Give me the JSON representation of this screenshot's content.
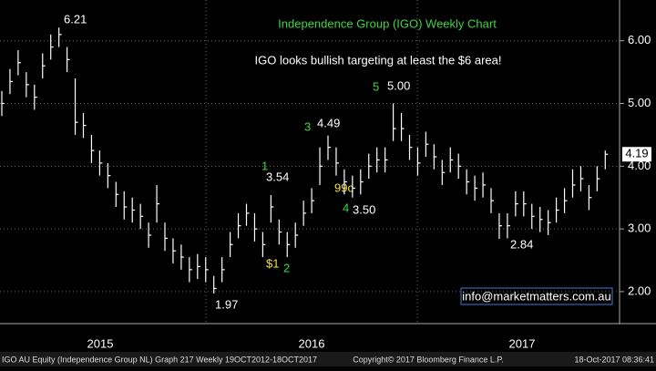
{
  "chart_data": {
    "type": "hlc",
    "title": "Independence Group (IGO) Weekly Chart",
    "subtitle": "IGO looks bullish targeting at least the $6 area!",
    "annotations": [
      "6.21",
      "5",
      "5.00",
      "3",
      "4.49",
      "3.54",
      "1",
      "99c",
      "4",
      "3.50",
      "$1",
      "2",
      "1.97",
      "2.84"
    ],
    "watermark": "info@marketmatters.com.au",
    "year_labels": [
      "2015",
      "2016",
      "2017"
    ],
    "footer": [
      "IGO AU Equity (Independence Group NL) Graph 217  Weekly 19OCT2012-18OCT2017",
      "Copyright© 2017 Bloomberg Finance L.P.",
      "18-Oct-2017 08:36:41"
    ],
    "color": "#ffffff",
    "ylim": [
      1.49,
      6.65
    ],
    "yticks": [
      {
        "value": 2,
        "label": "2.00"
      },
      {
        "value": 3,
        "label": "3.00"
      },
      {
        "value": 4,
        "label": "4.00"
      },
      {
        "value": 5,
        "label": "5.00"
      },
      {
        "value": 6,
        "label": "6.00"
      }
    ],
    "grid": true,
    "high": [
      5.2,
      5.55,
      5.85,
      5.5,
      5.3,
      5.8,
      6.1,
      6.21,
      5.9,
      5.4,
      4.85,
      4.5,
      4.25,
      4.05,
      3.75,
      3.6,
      3.5,
      3.4,
      3.1,
      3.7,
      3.1,
      2.85,
      2.75,
      2.55,
      2.6,
      2.55,
      2.25,
      2.55,
      2.95,
      3.25,
      3.4,
      3.25,
      2.95,
      3.54,
      3.15,
      2.95,
      3.1,
      3.45,
      3.65,
      4.3,
      4.49,
      4.3,
      3.95,
      3.85,
      3.95,
      4.2,
      4.3,
      4.3,
      5.0,
      4.85,
      4.5,
      4.3,
      4.55,
      4.35,
      4.1,
      4.3,
      4.2,
      3.95,
      3.85,
      3.9,
      3.65,
      3.25,
      3.25,
      3.6,
      3.6,
      3.4,
      3.35,
      3.3,
      3.5,
      3.65,
      3.95,
      4.0,
      3.7,
      4.0,
      4.25
    ],
    "low": [
      4.8,
      5.15,
      5.45,
      5.1,
      4.9,
      5.4,
      5.7,
      5.9,
      5.5,
      4.5,
      4.45,
      4.05,
      3.85,
      3.65,
      3.35,
      3.15,
      3.1,
      3.0,
      2.7,
      3.1,
      2.65,
      2.45,
      2.35,
      2.15,
      2.2,
      2.15,
      1.97,
      2.15,
      2.55,
      2.85,
      3.05,
      2.8,
      2.55,
      3.1,
      2.75,
      2.55,
      2.7,
      3.05,
      3.25,
      3.7,
      4.1,
      3.85,
      3.55,
      3.5,
      3.55,
      3.8,
      3.9,
      3.9,
      4.4,
      4.4,
      4.1,
      3.85,
      4.15,
      3.95,
      3.7,
      3.9,
      3.8,
      3.55,
      3.45,
      3.5,
      3.25,
      2.84,
      2.85,
      3.2,
      3.2,
      3.0,
      2.95,
      2.9,
      3.1,
      3.25,
      3.5,
      3.6,
      3.3,
      3.6,
      3.95
    ],
    "close": [
      5.0,
      5.35,
      5.65,
      5.3,
      5.1,
      5.6,
      5.9,
      6.1,
      5.7,
      4.7,
      4.65,
      4.25,
      4.05,
      3.85,
      3.55,
      3.35,
      3.3,
      3.2,
      2.9,
      3.4,
      2.85,
      2.65,
      2.55,
      2.35,
      2.4,
      2.35,
      2.05,
      2.35,
      2.75,
      3.05,
      3.25,
      3.0,
      2.75,
      3.35,
      2.95,
      2.75,
      2.9,
      3.25,
      3.45,
      4.0,
      4.3,
      4.05,
      3.75,
      3.65,
      3.75,
      4.0,
      4.1,
      4.1,
      4.6,
      4.6,
      4.3,
      4.05,
      4.35,
      4.15,
      3.9,
      4.1,
      4.0,
      3.75,
      3.65,
      3.7,
      3.45,
      3.05,
      3.05,
      3.4,
      3.4,
      3.2,
      3.15,
      3.1,
      3.3,
      3.45,
      3.7,
      3.8,
      3.5,
      3.8,
      4.19
    ]
  }
}
